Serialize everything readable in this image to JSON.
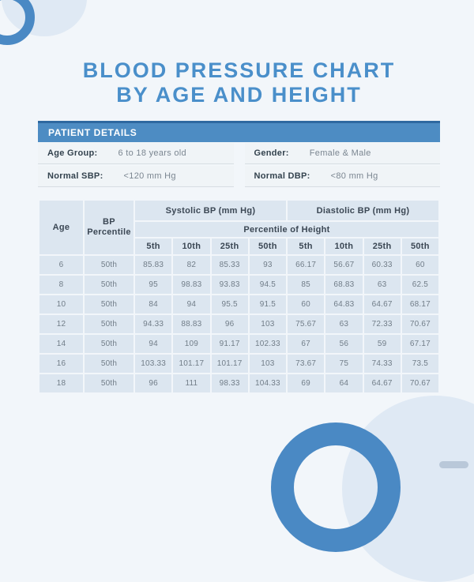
{
  "page": {
    "title_line1": "BLOOD PRESSURE CHART",
    "title_line2": "BY AGE AND HEIGHT"
  },
  "colors": {
    "accent_blue": "#4a89c4",
    "accent_blue_dark": "#2e68a0",
    "title_blue": "#4a8fca",
    "page_bg": "#f2f6fa",
    "table_cell_bg": "#dce6f0",
    "pale_circle": "#dfe9f4"
  },
  "patient_details": {
    "header": "PATIENT DETAILS",
    "fields": [
      {
        "label": "Age Group:",
        "value": "6 to 18 years old"
      },
      {
        "label": "Gender:",
        "value": "Female & Male"
      },
      {
        "label": "Normal SBP:",
        "value": "<120 mm Hg"
      },
      {
        "label": "Normal DBP:",
        "value": "<80 mm Hg"
      }
    ]
  },
  "chart_data": {
    "type": "table",
    "title": "BLOOD PRESSURE CHART BY AGE AND HEIGHT",
    "columns": {
      "age": "Age",
      "bp_percentile": "BP Percentile",
      "systolic_group": "Systolic BP (mm Hg)",
      "diastolic_group": "Diastolic BP (mm Hg)",
      "percentile_of_height": "Percentile of Height",
      "height_percentiles": [
        "5th",
        "10th",
        "25th",
        "50th"
      ]
    },
    "rows": [
      {
        "age": "6",
        "bp_percentile": "50th",
        "systolic": [
          "85.83",
          "82",
          "85.33",
          "93"
        ],
        "diastolic": [
          "66.17",
          "56.67",
          "60.33",
          "60"
        ]
      },
      {
        "age": "8",
        "bp_percentile": "50th",
        "systolic": [
          "95",
          "98.83",
          "93.83",
          "94.5"
        ],
        "diastolic": [
          "85",
          "68.83",
          "63",
          "62.5"
        ]
      },
      {
        "age": "10",
        "bp_percentile": "50th",
        "systolic": [
          "84",
          "94",
          "95.5",
          "91.5"
        ],
        "diastolic": [
          "60",
          "64.83",
          "64.67",
          "68.17"
        ]
      },
      {
        "age": "12",
        "bp_percentile": "50th",
        "systolic": [
          "94.33",
          "88.83",
          "96",
          "103"
        ],
        "diastolic": [
          "75.67",
          "63",
          "72.33",
          "70.67"
        ]
      },
      {
        "age": "14",
        "bp_percentile": "50th",
        "systolic": [
          "94",
          "109",
          "91.17",
          "102.33"
        ],
        "diastolic": [
          "67",
          "56",
          "59",
          "67.17"
        ]
      },
      {
        "age": "16",
        "bp_percentile": "50th",
        "systolic": [
          "103.33",
          "101.17",
          "101.17",
          "103"
        ],
        "diastolic": [
          "73.67",
          "75",
          "74.33",
          "73.5"
        ]
      },
      {
        "age": "18",
        "bp_percentile": "50th",
        "systolic": [
          "96",
          "111",
          "98.33",
          "104.33"
        ],
        "diastolic": [
          "69",
          "64",
          "64.67",
          "70.67"
        ]
      }
    ]
  }
}
